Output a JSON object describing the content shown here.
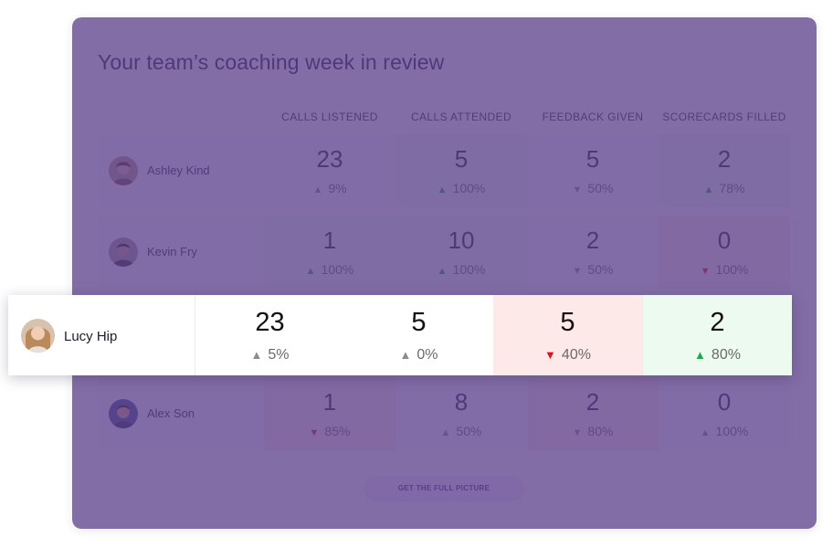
{
  "title": "Your team’s coaching week in review",
  "columns": [
    "CALLS LISTENED",
    "CALLS ATTENDED",
    "FEEDBACK GIVEN",
    "SCORECARDS FILLED"
  ],
  "rows": [
    {
      "name": "Ashley Kind",
      "cells": [
        {
          "value": "23",
          "change": "9%",
          "direction": "up",
          "status": "neutral"
        },
        {
          "value": "5",
          "change": "100%",
          "direction": "up",
          "status": "good"
        },
        {
          "value": "5",
          "change": "50%",
          "direction": "down",
          "status": "neutral"
        },
        {
          "value": "2",
          "change": "78%",
          "direction": "up",
          "status": "good"
        }
      ]
    },
    {
      "name": "Kevin Fry",
      "cells": [
        {
          "value": "1",
          "change": "100%",
          "direction": "up",
          "status": "good"
        },
        {
          "value": "10",
          "change": "100%",
          "direction": "up",
          "status": "good"
        },
        {
          "value": "2",
          "change": "50%",
          "direction": "down",
          "status": "neutral"
        },
        {
          "value": "0",
          "change": "100%",
          "direction": "down",
          "status": "bad"
        }
      ]
    },
    {
      "name": "Alex Son",
      "cells": [
        {
          "value": "1",
          "change": "85%",
          "direction": "down",
          "status": "bad"
        },
        {
          "value": "8",
          "change": "50%",
          "direction": "up",
          "status": "neutral"
        },
        {
          "value": "2",
          "change": "80%",
          "direction": "down",
          "status": "neutral"
        },
        {
          "value": "0",
          "change": "100%",
          "direction": "up",
          "status": "neutral"
        }
      ]
    }
  ],
  "highlight": {
    "name": "Lucy Hip",
    "cells": [
      {
        "value": "23",
        "change": "5%",
        "direction": "up",
        "status": "neutral"
      },
      {
        "value": "5",
        "change": "0%",
        "direction": "up",
        "status": "neutral"
      },
      {
        "value": "5",
        "change": "40%",
        "direction": "down",
        "status": "bad"
      },
      {
        "value": "2",
        "change": "80%",
        "direction": "up",
        "status": "good"
      }
    ]
  },
  "cta_label": "GET THE FULL PICTURE",
  "colors": {
    "overlay": "#5e418c",
    "up_good": "#26a650",
    "down_bad": "#d5161f",
    "neutral": "#8c8c8c"
  },
  "icons": {
    "up": "triangle-up-icon",
    "down": "triangle-down-icon",
    "avatar": "avatar-icon"
  }
}
